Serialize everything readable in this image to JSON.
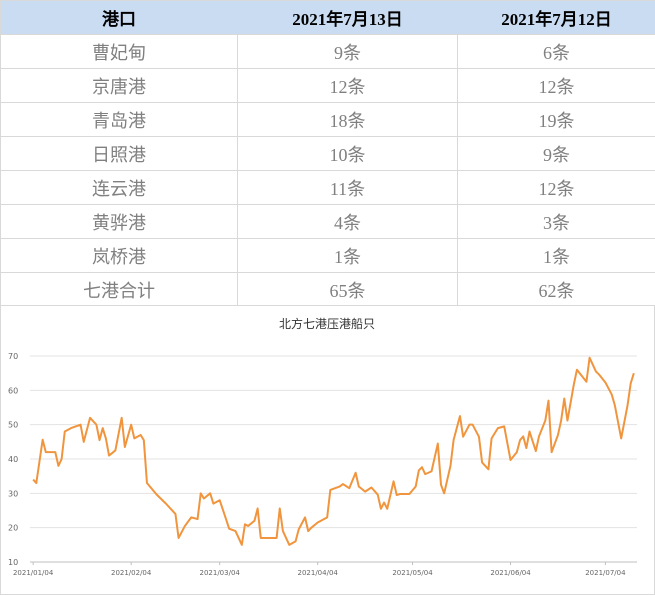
{
  "table": {
    "header": [
      "港口",
      "2021年7月13日",
      "2021年7月12日"
    ],
    "rows": [
      [
        "曹妃甸",
        "9条",
        "6条"
      ],
      [
        "京唐港",
        "12条",
        "12条"
      ],
      [
        "青岛港",
        "18条",
        "19条"
      ],
      [
        "日照港",
        "10条",
        "9条"
      ],
      [
        "连云港",
        "11条",
        "12条"
      ],
      [
        "黄骅港",
        "4条",
        "3条"
      ],
      [
        "岚桥港",
        "1条",
        "1条"
      ],
      [
        "七港合计",
        "65条",
        "62条"
      ]
    ]
  },
  "chart_data": {
    "type": "line",
    "title": "北方七港压港船只",
    "x": [
      "2021/01/04",
      "2021/01/05",
      "2021/01/07",
      "2021/01/08",
      "2021/01/11",
      "2021/01/12",
      "2021/01/13",
      "2021/01/14",
      "2021/01/16",
      "2021/01/19",
      "2021/01/20",
      "2021/01/22",
      "2021/01/24",
      "2021/01/25",
      "2021/01/26",
      "2021/01/27",
      "2021/01/28",
      "2021/01/30",
      "2021/02/01",
      "2021/02/02",
      "2021/02/04",
      "2021/02/05",
      "2021/02/07",
      "2021/02/08",
      "2021/02/09",
      "2021/02/12",
      "2021/02/15",
      "2021/02/18",
      "2021/02/19",
      "2021/02/21",
      "2021/02/23",
      "2021/02/25",
      "2021/02/26",
      "2021/02/27",
      "2021/03/01",
      "2021/03/02",
      "2021/03/04",
      "2021/03/06",
      "2021/03/07",
      "2021/03/09",
      "2021/03/11",
      "2021/03/12",
      "2021/03/13",
      "2021/03/15",
      "2021/03/16",
      "2021/03/17",
      "2021/03/20",
      "2021/03/22",
      "2021/03/23",
      "2021/03/24",
      "2021/03/26",
      "2021/03/28",
      "2021/03/29",
      "2021/03/31",
      "2021/04/01",
      "2021/04/02",
      "2021/04/04",
      "2021/04/07",
      "2021/04/08",
      "2021/04/11",
      "2021/04/12",
      "2021/04/14",
      "2021/04/16",
      "2021/04/17",
      "2021/04/19",
      "2021/04/21",
      "2021/04/23",
      "2021/04/24",
      "2021/04/25",
      "2021/04/26",
      "2021/04/28",
      "2021/04/29",
      "2021/04/30",
      "2021/05/03",
      "2021/05/05",
      "2021/05/06",
      "2021/05/07",
      "2021/05/08",
      "2021/05/10",
      "2021/05/12",
      "2021/05/13",
      "2021/05/14",
      "2021/05/16",
      "2021/05/17",
      "2021/05/19",
      "2021/05/20",
      "2021/05/22",
      "2021/05/23",
      "2021/05/25",
      "2021/05/26",
      "2021/05/28",
      "2021/05/29",
      "2021/05/31",
      "2021/06/02",
      "2021/06/04",
      "2021/06/06",
      "2021/06/07",
      "2021/06/08",
      "2021/06/09",
      "2021/06/10",
      "2021/06/12",
      "2021/06/13",
      "2021/06/15",
      "2021/06/16",
      "2021/06/17",
      "2021/06/19",
      "2021/06/20",
      "2021/06/21",
      "2021/06/22",
      "2021/06/24",
      "2021/06/25",
      "2021/06/28",
      "2021/06/29",
      "2021/07/01",
      "2021/07/02",
      "2021/07/04",
      "2021/07/06",
      "2021/07/07",
      "2021/07/09",
      "2021/07/11",
      "2021/07/12",
      "2021/07/13"
    ],
    "series": [
      {
        "name": "北方七港压港船只",
        "color": "#f0953e",
        "values": [
          34,
          33,
          45.6,
          42,
          42,
          38,
          40,
          48,
          49,
          50,
          45,
          52,
          50,
          45.5,
          49,
          46,
          41,
          42.5,
          52,
          43.5,
          50,
          46,
          47,
          45.5,
          33,
          29.7,
          27,
          24,
          17,
          20.5,
          23,
          22.5,
          30,
          28.5,
          30,
          27,
          28,
          22.5,
          19.7,
          19,
          15,
          21,
          20.5,
          22,
          25.6,
          17,
          17,
          17,
          25.6,
          19,
          15,
          16,
          19.5,
          23,
          19,
          20,
          21.5,
          23,
          31,
          32,
          32.7,
          31.5,
          36,
          32,
          30.5,
          31.7,
          29.6,
          25.5,
          27.3,
          25.5,
          33.5,
          29.5,
          29.8,
          29.8,
          32,
          36.7,
          37.6,
          35.6,
          36.4,
          44.5,
          32.5,
          30,
          38,
          45.6,
          52.5,
          46.5,
          50,
          50,
          46.5,
          39,
          37,
          46,
          49,
          49.5,
          39.7,
          42,
          45.5,
          46.6,
          43.2,
          48,
          42.3,
          46.6,
          51.2,
          57,
          42,
          47,
          51.2,
          57.6,
          51.2,
          61.6,
          66,
          62.5,
          69.5,
          65.5,
          64.6,
          62.3,
          58.8,
          55.6,
          46,
          55.6,
          62,
          65
        ]
      }
    ],
    "xlim": [
      "2021/01/03",
      "2021/07/14"
    ],
    "xticks": [
      "2021/01/04",
      "2021/02/04",
      "2021/03/04",
      "2021/04/04",
      "2021/05/04",
      "2021/06/04",
      "2021/07/04"
    ],
    "ylim": [
      10,
      70
    ],
    "yticks": [
      10,
      20,
      30,
      40,
      50,
      60,
      70
    ],
    "grid": true
  }
}
